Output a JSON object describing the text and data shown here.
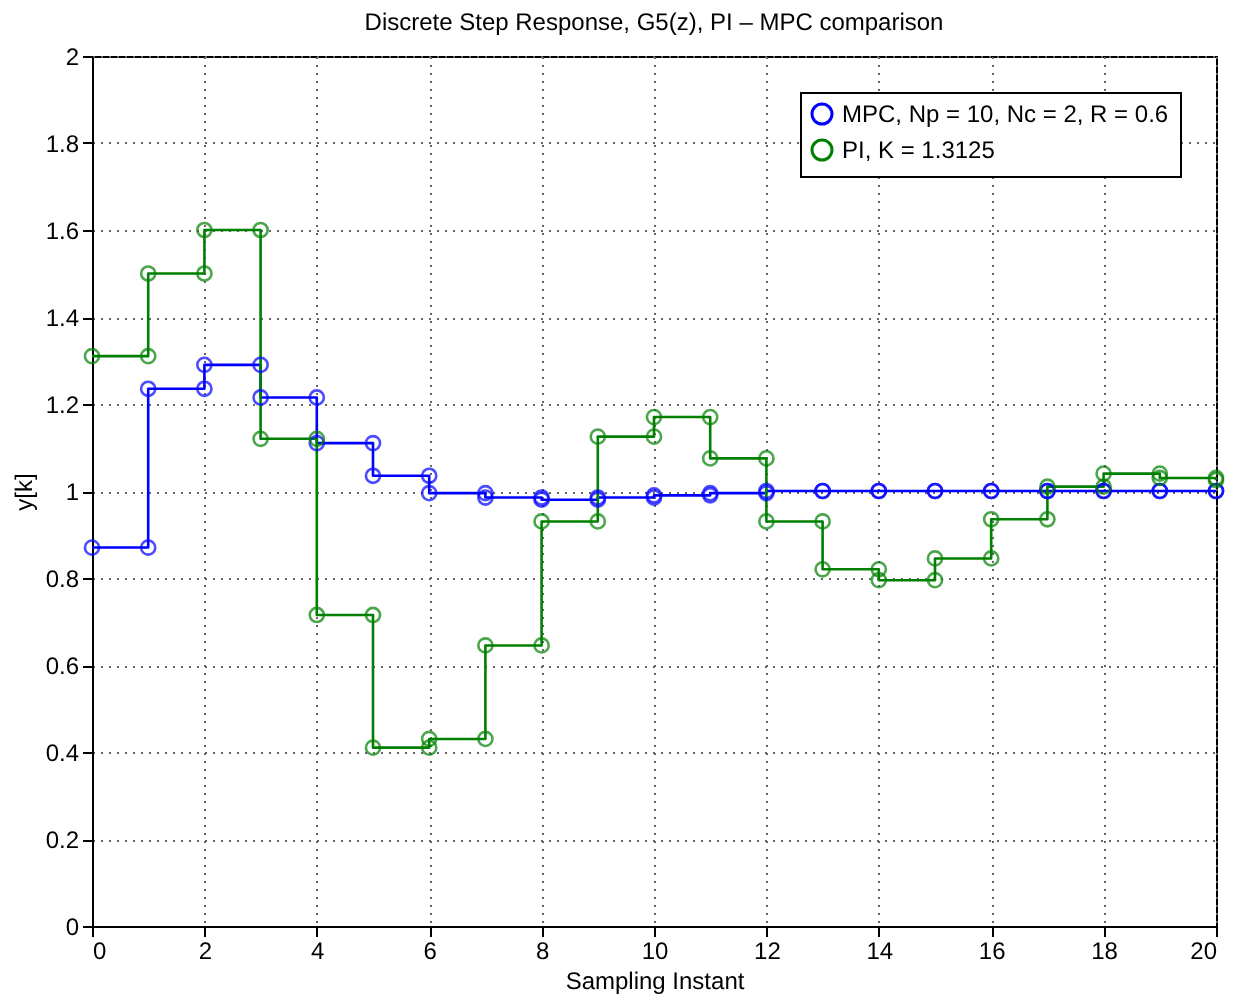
{
  "chart_data": {
    "type": "line",
    "title": "Discrete Step Response, G5(z), PI – MPC comparison",
    "xlabel": "Sampling Instant",
    "ylabel": "y[k]",
    "x": [
      0,
      1,
      1,
      2,
      2,
      3,
      3,
      4,
      4,
      5,
      5,
      6,
      6,
      7,
      7,
      8,
      8,
      9,
      9,
      10,
      10,
      11,
      11,
      12,
      12,
      13,
      13,
      14,
      14,
      15,
      15,
      16,
      16,
      17,
      17,
      18,
      18,
      19,
      19,
      20,
      20
    ],
    "series": [
      {
        "name": "MPC, Np = 10, Nc = 2, R = 0.6",
        "color": "#0000ff",
        "values": [
          0.87,
          0.87,
          1.235,
          1.235,
          1.29,
          1.29,
          1.215,
          1.215,
          1.11,
          1.11,
          1.035,
          1.035,
          0.995,
          0.995,
          0.985,
          0.985,
          0.98,
          0.98,
          0.985,
          0.985,
          0.99,
          0.99,
          0.995,
          0.995,
          1.0,
          1.0,
          1.0,
          1.0,
          1.0,
          1.0,
          1.0,
          1.0,
          1.0,
          1.0,
          1.0,
          1.0,
          1.0,
          1.0,
          1.0,
          1.0,
          1.0
        ]
      },
      {
        "name": "PI, K = 1.3125",
        "color": "#008000",
        "values": [
          1.31,
          1.31,
          1.5,
          1.5,
          1.6,
          1.6,
          1.12,
          1.12,
          0.715,
          0.715,
          0.41,
          0.41,
          0.43,
          0.43,
          0.645,
          0.645,
          0.93,
          0.93,
          1.125,
          1.125,
          1.17,
          1.17,
          1.075,
          1.075,
          0.93,
          0.93,
          0.82,
          0.82,
          0.795,
          0.795,
          0.845,
          0.845,
          0.935,
          0.935,
          1.01,
          1.01,
          1.04,
          1.04,
          1.03,
          1.03,
          1.025
        ]
      }
    ],
    "xlim": [
      0,
      20
    ],
    "ylim": [
      0,
      2
    ],
    "xticks": [
      0,
      2,
      4,
      6,
      8,
      10,
      12,
      14,
      16,
      18,
      20
    ],
    "yticks": [
      {
        "value": 0,
        "label": "0"
      },
      0.2,
      0.4,
      0.6,
      0.8,
      {
        "value": 1,
        "label": "1"
      },
      1.2,
      1.4,
      1.6,
      1.8,
      {
        "value": 2,
        "label": "2"
      }
    ],
    "grid": true,
    "legend": "top right",
    "marker": "circle",
    "line_style": "solid"
  }
}
